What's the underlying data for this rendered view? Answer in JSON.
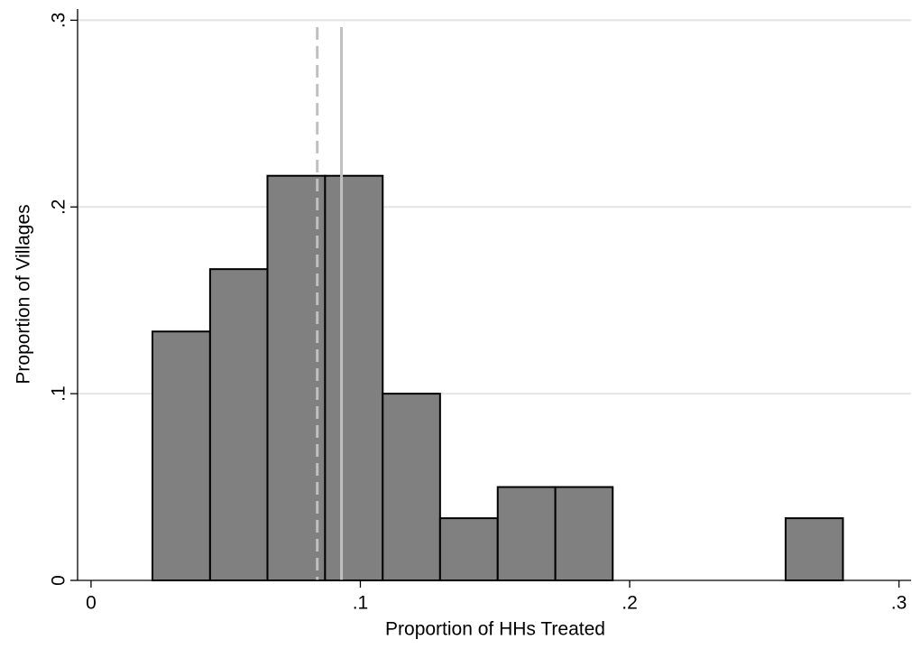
{
  "chart_data": {
    "type": "histogram",
    "x_label": "Proportion of HHs Treated",
    "y_label": "Proportion of Villages",
    "bins": [
      0.0228,
      0.0442,
      0.0655,
      0.0869,
      0.1083,
      0.1296,
      0.151,
      0.1724,
      0.1937,
      0.2151,
      0.2365,
      0.2579,
      0.2792
    ],
    "values": [
      0.1333,
      0.1667,
      0.2167,
      0.2167,
      0.1,
      0.0333,
      0.05,
      0.05,
      0,
      0,
      0,
      0.0333
    ],
    "color": "#808080",
    "vlines": [
      {
        "value": 0.084,
        "style": "dashed",
        "color": "#c0c0c0"
      },
      {
        "value": 0.093,
        "style": "solid",
        "color": "#c0c0c0"
      }
    ],
    "xlim": [
      -0.005,
      0.3045
    ],
    "ylim": [
      0,
      0.306
    ],
    "xticks": [
      0,
      {
        "value": 0.1,
        "label": ".1"
      },
      {
        "value": 0.2,
        "label": ".2"
      },
      {
        "value": 0.3,
        "label": ".3"
      }
    ],
    "yticks": [
      0,
      {
        "value": 0.1,
        "label": ".1"
      },
      {
        "value": 0.2,
        "label": ".2"
      },
      {
        "value": 0.3,
        "label": ".3"
      }
    ],
    "grid": true
  }
}
